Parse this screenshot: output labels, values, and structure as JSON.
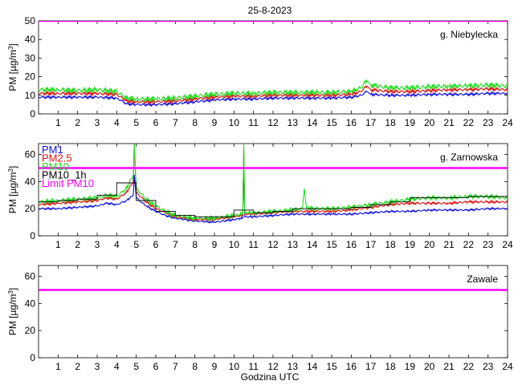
{
  "date_title": "25-8-2023",
  "xlabel": "Godzina UTC",
  "ylabel_main": "PM [µg/m",
  "ylabel_sup": "3",
  "ylabel_close": "]",
  "colors": {
    "pm1": "#1010e0",
    "pm25": "#e01010",
    "pm10": "#20e020",
    "pm10h": "#000000",
    "limit": "#ff00ff"
  },
  "chart_data": [
    {
      "type": "line",
      "station": "g. Niebylecka",
      "xlim": [
        0,
        24
      ],
      "ylim": [
        0,
        50
      ],
      "yticks": [
        0,
        10,
        20,
        30,
        40,
        50
      ],
      "xticks": [
        1,
        2,
        3,
        4,
        5,
        6,
        7,
        8,
        9,
        10,
        11,
        12,
        13,
        14,
        15,
        16,
        17,
        18,
        19,
        20,
        21,
        22,
        23,
        24
      ],
      "limit_pm10": 50,
      "legend": [],
      "series": [
        {
          "key": "pm1",
          "x": [
            0,
            1,
            2,
            3,
            4,
            4.5,
            5,
            6,
            7,
            8,
            9,
            10,
            11,
            12,
            13,
            14,
            15,
            16,
            16.5,
            16.8,
            17,
            18,
            19,
            20,
            21,
            22,
            23,
            24
          ],
          "y": [
            9,
            9,
            9,
            9,
            8.5,
            5.5,
            5,
            5,
            5.5,
            6.5,
            7.5,
            8,
            8,
            8.5,
            8.5,
            8.5,
            8.5,
            9,
            10,
            12,
            10.5,
            10,
            10,
            10.5,
            10.5,
            10.5,
            11,
            11
          ]
        },
        {
          "key": "pm25",
          "x": [
            0,
            1,
            2,
            3,
            4,
            4.5,
            5,
            6,
            7,
            8,
            9,
            10,
            11,
            12,
            13,
            14,
            15,
            16,
            16.5,
            16.8,
            17,
            18,
            19,
            20,
            21,
            22,
            23,
            24
          ],
          "y": [
            11,
            11,
            11,
            11,
            10.5,
            7,
            6.5,
            6.5,
            7,
            8,
            9,
            9.5,
            9.5,
            10,
            10,
            10,
            10,
            10.5,
            12,
            15,
            13,
            12,
            12,
            12.5,
            13,
            13,
            13.5,
            13
          ]
        },
        {
          "key": "pm10",
          "x": [
            0,
            1,
            2,
            3,
            4,
            4.5,
            5,
            6,
            7,
            8,
            9,
            10,
            11,
            12,
            13,
            14,
            15,
            16,
            16.5,
            16.8,
            17,
            18,
            19,
            20,
            21,
            22,
            23,
            24
          ],
          "y": [
            13,
            13,
            12.5,
            13,
            12,
            8.5,
            8,
            8,
            8.5,
            9.5,
            10.5,
            11,
            11,
            11.5,
            11.5,
            11.5,
            11.5,
            12,
            14,
            18,
            15.5,
            14,
            14,
            14.5,
            15,
            15,
            15.5,
            15
          ]
        }
      ]
    },
    {
      "type": "line",
      "station": "g. Zarnowska",
      "xlim": [
        0,
        24
      ],
      "ylim": [
        0,
        68
      ],
      "yticks": [
        0,
        20,
        40,
        60
      ],
      "xticks": [
        1,
        2,
        3,
        4,
        5,
        6,
        7,
        8,
        9,
        10,
        11,
        12,
        13,
        14,
        15,
        16,
        17,
        18,
        19,
        20,
        21,
        22,
        23,
        24
      ],
      "limit_pm10": 50,
      "legend": [
        {
          "key": "pm1",
          "label": "PM1"
        },
        {
          "key": "pm25",
          "label": "PM2.5"
        },
        {
          "key": "pm10",
          "label": "PM10"
        },
        {
          "key": "pm10h",
          "label": "PM10_1h"
        },
        {
          "key": "limit",
          "label": "Limit PM10"
        }
      ],
      "series": [
        {
          "key": "pm1",
          "x": [
            0,
            1,
            2,
            3,
            3.5,
            4,
            4.5,
            4.85,
            4.9,
            5,
            5.5,
            6,
            6.5,
            7,
            8,
            9,
            10,
            10.45,
            10.5,
            10.55,
            11,
            12,
            13,
            14,
            15,
            16,
            17,
            18,
            19,
            20,
            21,
            22,
            23,
            24
          ],
          "y": [
            20,
            20,
            21,
            22,
            24,
            23,
            26,
            30,
            45,
            28,
            22,
            18,
            15,
            13,
            11,
            10,
            12,
            13,
            60,
            14,
            14,
            15,
            16,
            16,
            16,
            16,
            17,
            18,
            18,
            19,
            19,
            19,
            20,
            20
          ]
        },
        {
          "key": "pm25",
          "x": [
            0,
            1,
            2,
            3,
            3.5,
            4,
            4.5,
            4.85,
            4.9,
            5,
            5.5,
            6,
            6.5,
            7,
            8,
            9,
            10,
            10.45,
            10.5,
            10.55,
            11,
            12,
            13,
            14,
            15,
            16,
            17,
            18,
            19,
            20,
            21,
            22,
            23,
            24
          ],
          "y": [
            23,
            24,
            25,
            26,
            28,
            27,
            32,
            40,
            68,
            32,
            25,
            20,
            17,
            14,
            12,
            12,
            14,
            15,
            65,
            16,
            16,
            17,
            18,
            18,
            18,
            19,
            21,
            23,
            24,
            24,
            24,
            25,
            25,
            25
          ]
        },
        {
          "key": "pm10",
          "x": [
            0,
            1,
            2,
            3,
            3.5,
            4,
            4.5,
            4.85,
            4.9,
            5,
            5.5,
            6,
            6.5,
            7,
            8,
            9,
            10,
            10.45,
            10.5,
            10.55,
            11,
            12,
            13,
            13.5,
            13.6,
            13.7,
            14,
            15,
            16,
            17,
            18,
            19,
            20,
            21,
            22,
            23,
            24
          ],
          "y": [
            25,
            26,
            27,
            28,
            30,
            29,
            35,
            45,
            68,
            35,
            27,
            22,
            18,
            15,
            13,
            13,
            15,
            16,
            68,
            17,
            17,
            18,
            19,
            20,
            35,
            21,
            20,
            20,
            21,
            23,
            25,
            27,
            28,
            28,
            29,
            29,
            28
          ]
        },
        {
          "key": "pm10h",
          "step": true,
          "x": [
            0,
            1,
            2,
            3,
            4,
            5,
            6,
            7,
            8,
            9,
            10,
            11,
            12,
            13,
            14,
            15,
            16,
            17,
            18,
            19,
            20,
            21,
            22,
            23,
            24
          ],
          "y": [
            25,
            26,
            27,
            30,
            39,
            26,
            18,
            15,
            14,
            14,
            19,
            17,
            18,
            20,
            20,
            20,
            21,
            23,
            25,
            28,
            28,
            28,
            29,
            29,
            29
          ]
        }
      ]
    },
    {
      "type": "line",
      "station": "Zawale",
      "xlim": [
        0,
        24
      ],
      "ylim": [
        0,
        68
      ],
      "yticks": [
        0,
        20,
        40,
        60
      ],
      "xticks": [
        1,
        2,
        3,
        4,
        5,
        6,
        7,
        8,
        9,
        10,
        11,
        12,
        13,
        14,
        15,
        16,
        17,
        18,
        19,
        20,
        21,
        22,
        23,
        24
      ],
      "limit_pm10": 50,
      "legend": [],
      "series": []
    }
  ]
}
